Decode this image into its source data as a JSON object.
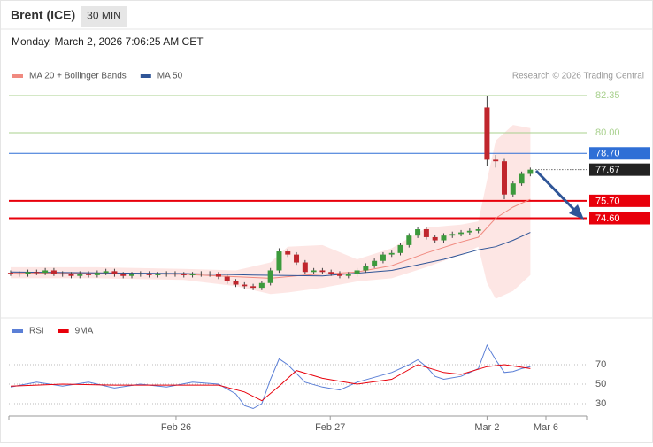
{
  "header": {
    "title": "Brent (ICE)",
    "interval": "30 MIN",
    "timestamp": "Monday, March 2, 2026 7:06:25 AM CET"
  },
  "chart_data": [
    {
      "type": "candlestick",
      "copyright": "Research © 2026 Trading Central",
      "up_color": "#3c9a3c",
      "down_color": "#c0262d",
      "xlim": [
        -0.2,
        66.5
      ],
      "ylim": [
        68.36,
        82.8
      ],
      "x": [
        0,
        1,
        2,
        3,
        4,
        5,
        6,
        7,
        8,
        9,
        10,
        11,
        12,
        13,
        14,
        15,
        16,
        17,
        18,
        19,
        20,
        21,
        22,
        23,
        24,
        25,
        26,
        27,
        28,
        29,
        30,
        31,
        32,
        33,
        34,
        35,
        36,
        37,
        38,
        39,
        40,
        41,
        42,
        43,
        44,
        45,
        46,
        47,
        48,
        49,
        50,
        51,
        52,
        53,
        54,
        55,
        56,
        57,
        58,
        59,
        60
      ],
      "open": [
        71.15,
        71.1,
        71.05,
        71.2,
        71.15,
        71.3,
        71.1,
        71.05,
        70.95,
        71.1,
        71.0,
        71.15,
        71.25,
        71.05,
        70.95,
        71.05,
        71.1,
        71.0,
        71.05,
        71.1,
        71.05,
        71.0,
        71.05,
        71.1,
        71.05,
        70.9,
        70.6,
        70.4,
        70.3,
        70.2,
        70.5,
        71.3,
        72.5,
        72.3,
        71.8,
        71.2,
        71.3,
        71.2,
        71.1,
        70.95,
        71.05,
        71.3,
        71.6,
        71.9,
        72.3,
        72.4,
        72.9,
        73.5,
        73.9,
        73.4,
        73.2,
        73.5,
        73.6,
        73.7,
        73.8,
        81.6,
        78.3,
        78.2,
        76.1,
        76.8,
        77.4
      ],
      "high": [
        71.3,
        71.25,
        71.35,
        71.35,
        71.45,
        71.45,
        71.25,
        71.2,
        71.25,
        71.25,
        71.3,
        71.4,
        71.4,
        71.2,
        71.2,
        71.25,
        71.25,
        71.2,
        71.25,
        71.25,
        71.2,
        71.2,
        71.25,
        71.25,
        71.2,
        71.05,
        70.75,
        70.55,
        70.45,
        70.65,
        71.45,
        72.7,
        72.65,
        72.45,
        71.95,
        71.45,
        71.45,
        71.35,
        71.25,
        71.2,
        71.45,
        71.75,
        72.05,
        72.45,
        72.55,
        73.05,
        73.65,
        74.05,
        74.05,
        73.55,
        73.65,
        73.75,
        73.85,
        73.95,
        74.05,
        82.35,
        78.6,
        78.35,
        76.95,
        77.55,
        77.8
      ],
      "low": [
        70.95,
        70.9,
        70.9,
        71.0,
        71.0,
        70.95,
        70.9,
        70.8,
        70.8,
        70.85,
        70.85,
        71.0,
        70.9,
        70.8,
        70.8,
        70.9,
        70.85,
        70.85,
        70.9,
        70.9,
        70.85,
        70.85,
        70.9,
        70.9,
        70.75,
        70.45,
        70.25,
        70.15,
        70.05,
        70.05,
        70.35,
        71.15,
        72.15,
        71.65,
        71.05,
        71.05,
        71.05,
        70.95,
        70.8,
        70.8,
        70.9,
        71.15,
        71.45,
        71.75,
        72.15,
        72.25,
        72.75,
        73.35,
        73.25,
        73.05,
        73.05,
        73.35,
        73.45,
        73.55,
        73.65,
        77.9,
        77.8,
        75.8,
        75.95,
        76.65,
        77.25
      ],
      "close": [
        71.1,
        71.05,
        71.2,
        71.15,
        71.3,
        71.1,
        71.05,
        70.95,
        71.1,
        71.0,
        71.15,
        71.25,
        71.05,
        70.95,
        71.05,
        71.1,
        71.0,
        71.05,
        71.1,
        71.05,
        71.0,
        71.05,
        71.1,
        71.05,
        70.9,
        70.6,
        70.4,
        70.3,
        70.2,
        70.5,
        71.3,
        72.5,
        72.3,
        71.8,
        71.2,
        71.3,
        71.2,
        71.1,
        70.95,
        71.05,
        71.3,
        71.6,
        71.9,
        72.3,
        72.4,
        72.9,
        73.5,
        73.9,
        73.4,
        73.2,
        73.5,
        73.6,
        73.7,
        73.8,
        73.9,
        78.3,
        78.2,
        76.1,
        76.8,
        77.4,
        77.67
      ],
      "band": {
        "name": "MA 20 + Bollinger Bands",
        "color": "#f08a80",
        "fill": "#fde3e1",
        "x": [
          0,
          10,
          20,
          26,
          30,
          32,
          36,
          40,
          44,
          48,
          52,
          54,
          55,
          56,
          58,
          60
        ],
        "upper": [
          71.5,
          71.5,
          71.4,
          71.3,
          71.8,
          72.8,
          72.9,
          72.0,
          72.7,
          74.0,
          74.2,
          74.4,
          77.0,
          79.5,
          80.5,
          80.3
        ],
        "lower": [
          70.8,
          70.8,
          70.7,
          70.3,
          69.8,
          69.9,
          70.2,
          70.6,
          70.8,
          71.5,
          72.3,
          72.8,
          70.5,
          69.5,
          70.0,
          71.0
        ]
      },
      "series": [
        {
          "name": "MA 20 + Bollinger Bands",
          "color": "#f08a80",
          "x": [
            0,
            10,
            20,
            26,
            30,
            34,
            40,
            44,
            48,
            52,
            54,
            56,
            58,
            60
          ],
          "values": [
            71.15,
            71.1,
            71.05,
            70.9,
            70.8,
            71.0,
            71.2,
            71.6,
            72.4,
            73.1,
            73.4,
            74.6,
            75.3,
            75.8
          ]
        },
        {
          "name": "MA 50",
          "color": "#2f5597",
          "x": [
            0,
            10,
            20,
            28,
            36,
            44,
            50,
            54,
            56,
            58,
            60
          ],
          "values": [
            71.2,
            71.15,
            71.1,
            71.0,
            70.95,
            71.3,
            72.0,
            72.6,
            72.8,
            73.2,
            73.7
          ]
        }
      ],
      "levels": [
        {
          "value": 82.35,
          "color": "#a8d08d",
          "style": "thin"
        },
        {
          "value": 80,
          "label": "80.00",
          "color": "#a8d08d",
          "style": "thin"
        },
        {
          "value": 78.7,
          "label": "78.70",
          "color": "#2f6fd6",
          "style": "box"
        },
        {
          "value": 77.67,
          "color": "#222222",
          "style": "dotted"
        },
        {
          "value": 75.7,
          "label": "75.70",
          "color": "#e8000b",
          "style": "thick"
        },
        {
          "value": 74.6,
          "label": "74.60",
          "color": "#e8000b",
          "style": "thick"
        }
      ]
    },
    {
      "type": "line",
      "xlim": [
        -0.2,
        66.5
      ],
      "ylim": [
        17.3,
        94.5
      ],
      "yticks": [
        30,
        50,
        70
      ],
      "grid": true,
      "xticks": [
        {
          "value": 19.1,
          "label": "Feb 26"
        },
        {
          "value": 36.9,
          "label": "Feb 27"
        },
        {
          "value": 55.0,
          "label": "Mar 2"
        },
        {
          "value": 61.8,
          "label": "Mar 6"
        }
      ],
      "series": [
        {
          "name": "RSI",
          "color": "#5b7fd6",
          "x": [
            0,
            3,
            6,
            9,
            12,
            15,
            18,
            21,
            24,
            26,
            27,
            28,
            29,
            30,
            31,
            32,
            34,
            36,
            38,
            40,
            42,
            44,
            46,
            47,
            48,
            49,
            50,
            52,
            54,
            55,
            56,
            57,
            58,
            59,
            60
          ],
          "values": [
            47,
            52,
            48,
            52,
            46,
            50,
            47,
            52,
            50,
            40,
            28,
            25,
            30,
            55,
            76,
            70,
            52,
            47,
            44,
            52,
            57,
            62,
            70,
            75,
            68,
            58,
            55,
            58,
            66,
            90,
            75,
            62,
            63,
            66,
            68
          ]
        },
        {
          "name": "9MA",
          "color": "#e8000b",
          "x": [
            0,
            6,
            12,
            18,
            24,
            27,
            29,
            31,
            33,
            36,
            40,
            44,
            47,
            50,
            52,
            55,
            57,
            60
          ],
          "values": [
            48,
            50,
            49,
            49,
            49,
            42,
            33,
            48,
            64,
            56,
            50,
            55,
            70,
            62,
            60,
            68,
            70,
            66
          ]
        }
      ]
    }
  ]
}
